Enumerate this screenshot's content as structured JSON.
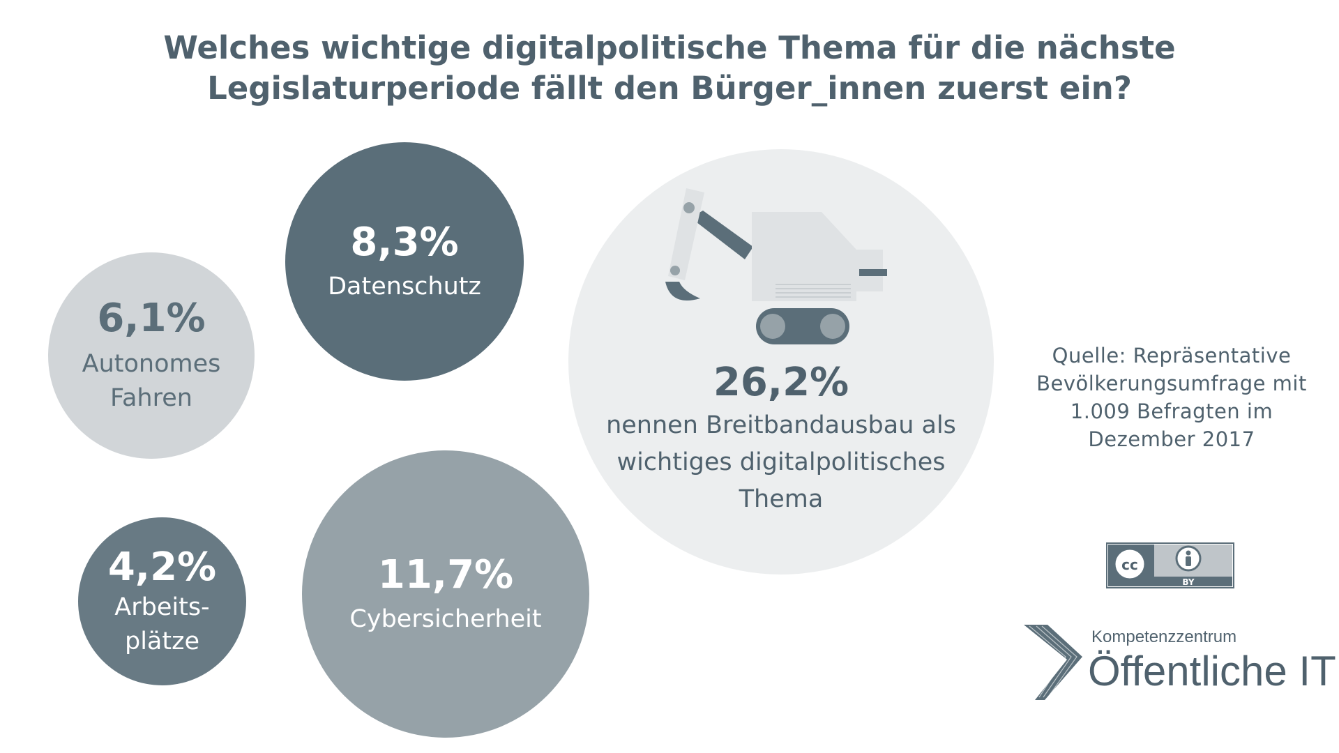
{
  "title": {
    "line1": "Welches wichtige digitalpolitische Thema für die nächste",
    "line2": "Legislaturperiode fällt den Bürger_innen zuerst ein?"
  },
  "chart_data": {
    "type": "bubble",
    "unit": "%",
    "items": [
      {
        "label": "Breitbandausbau",
        "value": 26.2,
        "value_text": "26,2%",
        "caption": [
          "nennen Breitbandausbau als",
          "wichtiges digitalpolitisches",
          "Thema"
        ],
        "color": "#eceeef"
      },
      {
        "label": "Cybersicherheit",
        "value": 11.7,
        "value_text": "11,7%",
        "caption": [
          "Cybersicherheit"
        ],
        "color": "#96a2a8"
      },
      {
        "label": "Datenschutz",
        "value": 8.3,
        "value_text": "8,3%",
        "caption": [
          "Datenschutz"
        ],
        "color": "#5a6e79"
      },
      {
        "label": "Autonomes Fahren",
        "value": 6.1,
        "value_text": "6,1%",
        "caption": [
          "Autonomes",
          "Fahren"
        ],
        "color": "#d1d5d8"
      },
      {
        "label": "Arbeitsplätze",
        "value": 4.2,
        "value_text": "4,2%",
        "caption": [
          "Arbeits-",
          "plätze"
        ],
        "color": "#687a84"
      }
    ]
  },
  "source": {
    "line1": "Quelle: Repräsentative",
    "line2": "Bevölkerungsumfrage mit",
    "line3": "1.009 Befragten im",
    "line4": "Dezember 2017"
  },
  "license": {
    "icon": "cc-by-icon",
    "cc_text": "cc",
    "by_text": "BY"
  },
  "logo": {
    "icon": "kompetenzzentrum-logo-icon",
    "line1": "Kompetenzzentrum",
    "line2": "Öffentliche IT"
  },
  "colors": {
    "title": "#4f616d",
    "dark": "#5a6e79",
    "mid": "#96a2a8",
    "light": "#d1d5d8",
    "lightest": "#eceeef"
  }
}
